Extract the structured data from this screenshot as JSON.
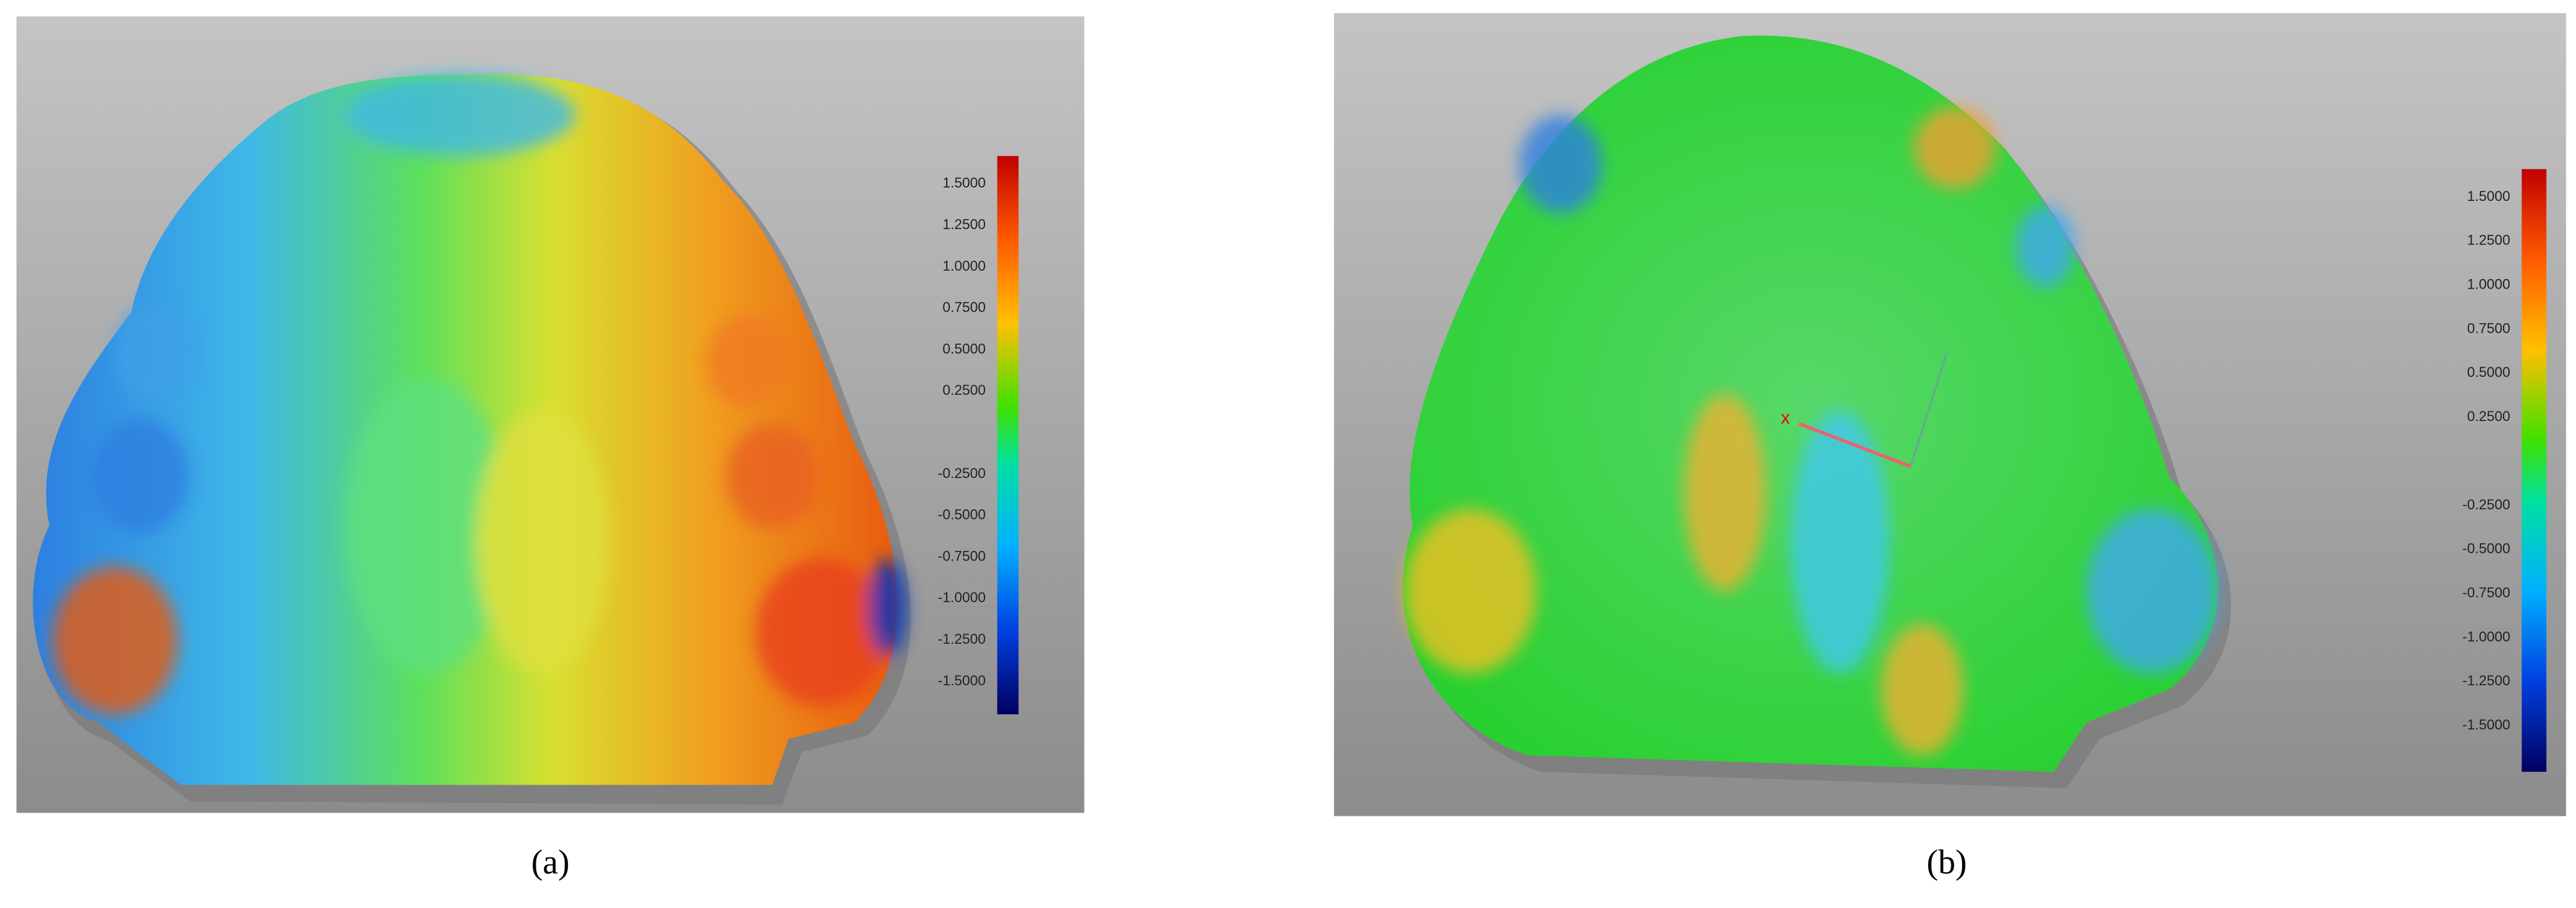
{
  "panels": [
    {
      "label": "(a)",
      "scale_labels": [
        "1.5000",
        "1.2500",
        "1.0000",
        "0.7500",
        "0.5000",
        "0.2500",
        "-0.2500",
        "-0.5000",
        "-0.7500",
        "-1.0000",
        "-1.2500",
        "-1.5000"
      ]
    },
    {
      "label": "(b)",
      "scale_labels": [
        "1.5000",
        "1.2500",
        "1.0000",
        "0.7500",
        "0.5000",
        "0.2500",
        "-0.2500",
        "-0.5000",
        "-0.7500",
        "-1.0000",
        "-1.2500",
        "-1.5000"
      ]
    }
  ]
}
